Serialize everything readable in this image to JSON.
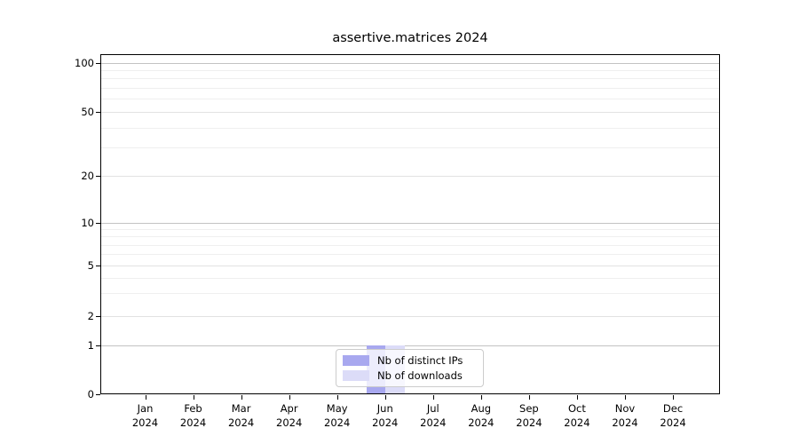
{
  "title": "assertive.matrices 2024",
  "legend": {
    "items": [
      {
        "label": "Nb of distinct IPs",
        "color": "#a8a8ef"
      },
      {
        "label": "Nb of downloads",
        "color": "#dcdcf8"
      }
    ]
  },
  "yaxis": {
    "ticks": [
      {
        "value": 0,
        "label": "0"
      },
      {
        "value": 1,
        "label": "1"
      },
      {
        "value": 2,
        "label": "2"
      },
      {
        "value": 5,
        "label": "5"
      },
      {
        "value": 10,
        "label": "10"
      },
      {
        "value": 20,
        "label": "20"
      },
      {
        "value": 50,
        "label": "50"
      },
      {
        "value": 100,
        "label": "100"
      }
    ],
    "minor_values": [
      3,
      4,
      6,
      7,
      8,
      9,
      30,
      40,
      60,
      70,
      80,
      90
    ]
  },
  "xaxis": {
    "months": [
      {
        "label": "Jan",
        "year": "2024"
      },
      {
        "label": "Feb",
        "year": "2024"
      },
      {
        "label": "Mar",
        "year": "2024"
      },
      {
        "label": "Apr",
        "year": "2024"
      },
      {
        "label": "May",
        "year": "2024"
      },
      {
        "label": "Jun",
        "year": "2024"
      },
      {
        "label": "Jul",
        "year": "2024"
      },
      {
        "label": "Aug",
        "year": "2024"
      },
      {
        "label": "Sep",
        "year": "2024"
      },
      {
        "label": "Oct",
        "year": "2024"
      },
      {
        "label": "Nov",
        "year": "2024"
      },
      {
        "label": "Dec",
        "year": "2024"
      }
    ]
  },
  "chart_data": {
    "type": "bar",
    "title": "assertive.matrices 2024",
    "categories": [
      "Jan 2024",
      "Feb 2024",
      "Mar 2024",
      "Apr 2024",
      "May 2024",
      "Jun 2024",
      "Jul 2024",
      "Aug 2024",
      "Sep 2024",
      "Oct 2024",
      "Nov 2024",
      "Dec 2024"
    ],
    "series": [
      {
        "name": "Nb of distinct IPs",
        "color": "#a8a8ef",
        "values": [
          0,
          0,
          0,
          0,
          0,
          1,
          0,
          0,
          0,
          0,
          0,
          0
        ]
      },
      {
        "name": "Nb of downloads",
        "color": "#dcdcf8",
        "values": [
          0,
          0,
          0,
          0,
          0,
          1,
          0,
          0,
          0,
          0,
          0,
          0
        ]
      }
    ],
    "xlabel": "",
    "ylabel": "",
    "ylim": [
      0,
      100
    ],
    "y_scale": "log-like (ticks 0,1,2,5,10,20,50,100)",
    "grid": "horizontal, on",
    "legend_position": "lower center"
  },
  "colors": {
    "grid_decade": "#c3c3c3",
    "grid_labeled": "#e2e2e2",
    "grid_minor": "#efefef",
    "axis": "#000000",
    "background": "#ffffff"
  }
}
